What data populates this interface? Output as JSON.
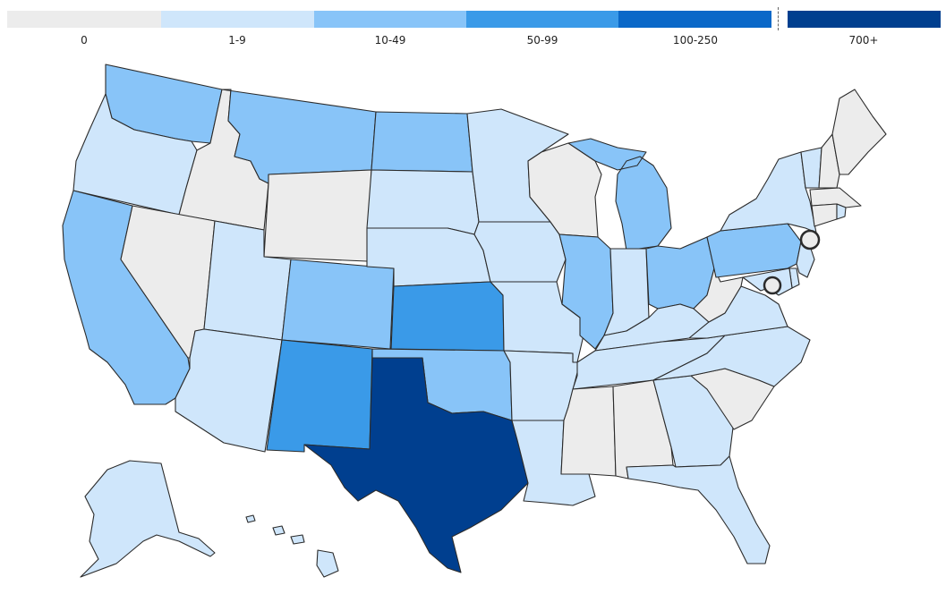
{
  "legend": {
    "bins": [
      {
        "label": "0",
        "color": "#ececec"
      },
      {
        "label": "1-9",
        "color": "#cfe6fb"
      },
      {
        "label": "10-49",
        "color": "#88c4f8"
      },
      {
        "label": "50-99",
        "color": "#3a9ae8"
      },
      {
        "label": "100-250",
        "color": "#0a68c8"
      },
      {
        "label": "700+",
        "color": "#003f8f"
      }
    ]
  },
  "map": {
    "states": [
      {
        "name": "WA",
        "bin": "10-49"
      },
      {
        "name": "OR",
        "bin": "1-9"
      },
      {
        "name": "CA",
        "bin": "10-49"
      },
      {
        "name": "ID",
        "bin": "0"
      },
      {
        "name": "NV",
        "bin": "0"
      },
      {
        "name": "MT",
        "bin": "10-49"
      },
      {
        "name": "WY",
        "bin": "0"
      },
      {
        "name": "UT",
        "bin": "1-9"
      },
      {
        "name": "AZ",
        "bin": "1-9"
      },
      {
        "name": "CO",
        "bin": "10-49"
      },
      {
        "name": "NM",
        "bin": "50-99"
      },
      {
        "name": "ND",
        "bin": "10-49"
      },
      {
        "name": "SD",
        "bin": "1-9"
      },
      {
        "name": "NE",
        "bin": "1-9"
      },
      {
        "name": "KS",
        "bin": "50-99"
      },
      {
        "name": "OK",
        "bin": "10-49"
      },
      {
        "name": "TX",
        "bin": "700+"
      },
      {
        "name": "MN",
        "bin": "1-9"
      },
      {
        "name": "IA",
        "bin": "1-9"
      },
      {
        "name": "MO",
        "bin": "1-9"
      },
      {
        "name": "AR",
        "bin": "1-9"
      },
      {
        "name": "LA",
        "bin": "1-9"
      },
      {
        "name": "WI",
        "bin": "0"
      },
      {
        "name": "IL",
        "bin": "10-49"
      },
      {
        "name": "MI",
        "bin": "10-49"
      },
      {
        "name": "IN",
        "bin": "1-9"
      },
      {
        "name": "OH",
        "bin": "10-49"
      },
      {
        "name": "KY",
        "bin": "1-9"
      },
      {
        "name": "TN",
        "bin": "1-9"
      },
      {
        "name": "MS",
        "bin": "0"
      },
      {
        "name": "AL",
        "bin": "0"
      },
      {
        "name": "GA",
        "bin": "1-9"
      },
      {
        "name": "FL",
        "bin": "1-9"
      },
      {
        "name": "SC",
        "bin": "0"
      },
      {
        "name": "NC",
        "bin": "1-9"
      },
      {
        "name": "VA",
        "bin": "1-9"
      },
      {
        "name": "WV",
        "bin": "0"
      },
      {
        "name": "PA",
        "bin": "10-49"
      },
      {
        "name": "NY",
        "bin": "1-9"
      },
      {
        "name": "VT",
        "bin": "1-9"
      },
      {
        "name": "NH",
        "bin": "0"
      },
      {
        "name": "ME",
        "bin": "0"
      },
      {
        "name": "MA",
        "bin": "0"
      },
      {
        "name": "CT",
        "bin": "0"
      },
      {
        "name": "RI",
        "bin": "1-9"
      },
      {
        "name": "NJ",
        "bin": "1-9"
      },
      {
        "name": "DE",
        "bin": "1-9"
      },
      {
        "name": "MD",
        "bin": "1-9"
      },
      {
        "name": "AK",
        "bin": "1-9"
      },
      {
        "name": "HI",
        "bin": "1-9"
      }
    ],
    "markers": [
      {
        "name": "NYC",
        "bin": "0"
      },
      {
        "name": "DC",
        "bin": "0"
      }
    ]
  }
}
